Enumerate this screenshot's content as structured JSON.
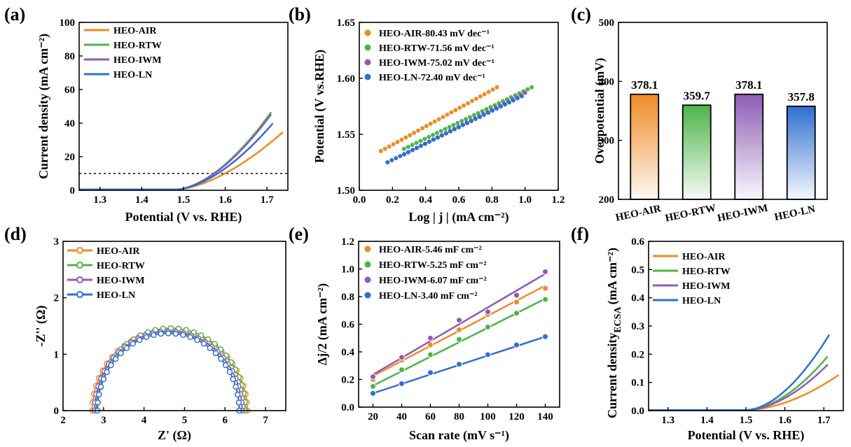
{
  "colors": {
    "air": "#F08A24",
    "rtw": "#4CB54A",
    "iwm": "#8E5BB5",
    "ln": "#2F6FD0"
  },
  "chart_data": [
    {
      "id": "a",
      "panel_label": "(a)",
      "type": "line",
      "xlabel": "Potential (V vs. RHE)",
      "ylabel": "Current density (mA cm⁻²)",
      "xlim": [
        1.25,
        1.75
      ],
      "ylim": [
        0,
        100
      ],
      "xticks": [
        "1.3",
        "1.4",
        "1.5",
        "1.6",
        "1.7"
      ],
      "xtick_values": [
        1.3,
        1.4,
        1.5,
        1.6,
        1.7
      ],
      "yticks": [
        "0",
        "20",
        "40",
        "60",
        "80",
        "100"
      ],
      "ytick_values": [
        0,
        20,
        40,
        60,
        80,
        100
      ],
      "reference_line": 10,
      "legend_position": "top-left",
      "series": [
        {
          "name": "HEO-AIR",
          "color_key": "air",
          "onset": 1.48,
          "k": 320,
          "p": 1.65,
          "x_end": 1.74
        },
        {
          "name": "HEO-RTW",
          "color_key": "rtw",
          "onset": 1.48,
          "k": 578,
          "p": 1.72,
          "x_end": 1.71
        },
        {
          "name": "HEO-IWM",
          "color_key": "iwm",
          "onset": 1.48,
          "k": 562,
          "p": 1.72,
          "x_end": 1.71
        },
        {
          "name": "HEO-LN",
          "color_key": "ln",
          "onset": 1.48,
          "k": 466,
          "p": 1.7,
          "x_end": 1.715
        }
      ]
    },
    {
      "id": "b",
      "panel_label": "(b)",
      "type": "scatter",
      "xlabel": "Log | j | (mA cm⁻²)",
      "ylabel": "Potential (V vs.RHE)",
      "xlim": [
        0,
        1.2
      ],
      "ylim": [
        1.5,
        1.65
      ],
      "xticks": [
        "0.0",
        "0.2",
        "0.4",
        "0.6",
        "0.8",
        "1.0",
        "1.2"
      ],
      "xtick_values": [
        0,
        0.2,
        0.4,
        0.6,
        0.8,
        1.0,
        1.2
      ],
      "yticks": [
        "1.50",
        "1.55",
        "1.60",
        "1.65"
      ],
      "ytick_values": [
        1.5,
        1.55,
        1.6,
        1.65
      ],
      "legend_position": "top-left",
      "series": [
        {
          "name": "HEO-AIR-80.43 mV dec⁻¹",
          "color_key": "air",
          "x_start": 0.13,
          "x_end": 0.83,
          "y_start": 1.535,
          "y_end": 1.592
        },
        {
          "name": "HEO-RTW-71.56 mV dec⁻¹",
          "color_key": "rtw",
          "x_start": 0.27,
          "x_end": 1.04,
          "y_start": 1.537,
          "y_end": 1.592
        },
        {
          "name": "HEO-IWM-75.02 mV dec⁻¹",
          "color_key": "iwm",
          "x_start": 0.27,
          "x_end": 1.0,
          "y_start": 1.532,
          "y_end": 1.587
        },
        {
          "name": "HEO-LN-72.40 mV dec⁻¹",
          "color_key": "ln",
          "x_start": 0.17,
          "x_end": 0.98,
          "y_start": 1.525,
          "y_end": 1.584
        }
      ]
    },
    {
      "id": "c",
      "panel_label": "(c)",
      "type": "bar",
      "ylabel": "Overpotential (mV)",
      "ylim": [
        200,
        500
      ],
      "yticks": [
        "200",
        "300",
        "400",
        "500"
      ],
      "ytick_values": [
        200,
        300,
        400,
        500
      ],
      "categories": [
        "HEO-AIR",
        "HEO-RTW",
        "HEO-IWM",
        "HEO-LN"
      ],
      "values": [
        378.1,
        359.7,
        378.1,
        357.8
      ],
      "value_labels": [
        "378.1",
        "359.7",
        "378.1",
        "357.8"
      ],
      "color_keys": [
        "air",
        "rtw",
        "iwm",
        "ln"
      ]
    },
    {
      "id": "d",
      "panel_label": "(d)",
      "type": "scatter",
      "xlabel": "Z' (Ω)",
      "ylabel": "-Z'' (Ω)",
      "xlim": [
        2,
        7.5
      ],
      "ylim": [
        0,
        3
      ],
      "xticks": [
        "2",
        "3",
        "4",
        "5",
        "6",
        "7"
      ],
      "xtick_values": [
        2,
        3,
        4,
        5,
        6,
        7
      ],
      "yticks": [
        "0",
        "1",
        "2",
        "3"
      ],
      "ytick_values": [
        0,
        1,
        2,
        3
      ],
      "legend_position": "top-left",
      "series": [
        {
          "name": "HEO-AIR",
          "color_key": "air",
          "r_start": 2.72,
          "r_end": 6.55,
          "height": 1.42
        },
        {
          "name": "HEO-RTW",
          "color_key": "rtw",
          "r_start": 2.82,
          "r_end": 6.5,
          "height": 1.46
        },
        {
          "name": "HEO-IWM",
          "color_key": "iwm",
          "r_start": 2.78,
          "r_end": 6.42,
          "height": 1.4
        },
        {
          "name": "HEO-LN",
          "color_key": "ln",
          "r_start": 2.85,
          "r_end": 6.35,
          "height": 1.37
        }
      ]
    },
    {
      "id": "e",
      "panel_label": "(e)",
      "type": "scatter",
      "xlabel": "Scan rate (mV s⁻¹)",
      "ylabel": "Δj/2 (mA cm⁻²)",
      "xlim": [
        10,
        150
      ],
      "ylim": [
        0,
        1.2
      ],
      "xticks": [
        "20",
        "40",
        "60",
        "80",
        "100",
        "120",
        "140"
      ],
      "xtick_values": [
        20,
        40,
        60,
        80,
        100,
        120,
        140
      ],
      "yticks": [
        "0.0",
        "0.2",
        "0.4",
        "0.6",
        "0.8",
        "1.0",
        "1.2"
      ],
      "ytick_values": [
        0,
        0.2,
        0.4,
        0.6,
        0.8,
        1.0,
        1.2
      ],
      "legend_position": "top-left",
      "x": [
        20,
        40,
        60,
        80,
        100,
        120,
        140
      ],
      "series": [
        {
          "name": "HEO-AIR-5.46 mF cm⁻²",
          "color_key": "air",
          "values": [
            0.2,
            0.34,
            0.45,
            0.56,
            0.67,
            0.76,
            0.86
          ],
          "fit": [
            0.225,
            0.88
          ]
        },
        {
          "name": "HEO-RTW-5.25 mF cm⁻²",
          "color_key": "rtw",
          "values": [
            0.15,
            0.27,
            0.38,
            0.49,
            0.58,
            0.68,
            0.78
          ],
          "fit": [
            0.155,
            0.785
          ]
        },
        {
          "name": "HEO-IWM-6.07 mF cm⁻²",
          "color_key": "iwm",
          "values": [
            0.22,
            0.36,
            0.5,
            0.63,
            0.69,
            0.81,
            0.98
          ],
          "fit": [
            0.235,
            0.965
          ]
        },
        {
          "name": "HEO-LN-3.40 mF cm⁻²",
          "color_key": "ln",
          "values": [
            0.1,
            0.17,
            0.25,
            0.31,
            0.38,
            0.45,
            0.51
          ],
          "fit": [
            0.1,
            0.51
          ]
        }
      ]
    },
    {
      "id": "f",
      "panel_label": "(f)",
      "type": "line",
      "xlabel": "Potential (V vs. RHE)",
      "ylabel": "Current density_ECSA (mA cm⁻²)",
      "ylabel_main": "Current density",
      "ylabel_sub": "ECSA",
      "ylabel_unit": "(mA cm⁻²)",
      "xlim": [
        1.25,
        1.75
      ],
      "ylim": [
        0,
        0.6
      ],
      "xticks": [
        "1.3",
        "1.4",
        "1.5",
        "1.6",
        "1.7"
      ],
      "xtick_values": [
        1.3,
        1.4,
        1.5,
        1.6,
        1.7
      ],
      "yticks": [
        "0.0",
        "0.1",
        "0.2",
        "0.3",
        "0.4",
        "0.5",
        "0.6"
      ],
      "ytick_values": [
        0,
        0.1,
        0.2,
        0.3,
        0.4,
        0.5,
        0.6
      ],
      "legend_position": "top-left",
      "series": [
        {
          "name": "HEO-AIR",
          "color_key": "air",
          "onset": 1.5,
          "k": 1.65,
          "p": 1.8,
          "x_end": 1.74
        },
        {
          "name": "HEO-RTW",
          "color_key": "rtw",
          "onset": 1.5,
          "k": 3.16,
          "p": 1.8,
          "x_end": 1.71
        },
        {
          "name": "HEO-IWM",
          "color_key": "iwm",
          "onset": 1.5,
          "k": 2.68,
          "p": 1.8,
          "x_end": 1.71
        },
        {
          "name": "HEO-LN",
          "color_key": "ln",
          "onset": 1.5,
          "k": 4.29,
          "p": 1.8,
          "x_end": 1.715
        }
      ]
    }
  ]
}
